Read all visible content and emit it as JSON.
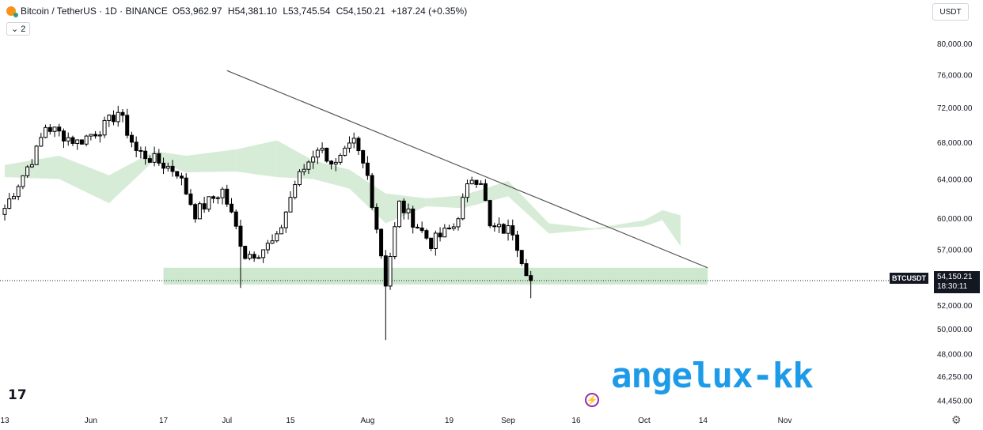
{
  "header": {
    "title": "Bitcoin / TetherUS · 1D · BINANCE",
    "open": "O53,962.97",
    "high": "H54,381.10",
    "low": "L53,745.54",
    "close": "C54,150.21",
    "change": "+187.24 (+0.35%)",
    "indicator_toggle": "⌄ 2"
  },
  "quote_currency": "USDT",
  "price_tag": {
    "symbol": "BTCUSDT",
    "price": "54,150.21",
    "countdown": "18:30:11"
  },
  "watermark": "angelux-kk",
  "colors": {
    "up": "#ffffff",
    "down": "#000000",
    "cloud_bull": "#c8e6c9",
    "cloud_bear": "#fbd7d7",
    "support_zone": "#a5d6a7",
    "watermark": "#1e9be8"
  },
  "chart_data": {
    "type": "candlestick",
    "symbol": "BTCUSDT",
    "interval": "1D",
    "x_tick_labels": [
      "13",
      "Jun",
      "17",
      "Jul",
      "15",
      "Aug",
      "19",
      "Sep",
      "16",
      "Oct",
      "14",
      "Nov"
    ],
    "y_tick_labels": [
      "80,000.00",
      "76,000.00",
      "72,000.00",
      "68,000.00",
      "64,000.00",
      "60,000.00",
      "57,000.00",
      "52,000.00",
      "50,000.00",
      "48,000.00",
      "46,250.00",
      "44,450.00"
    ],
    "y_scale": "log",
    "ylim": [
      43800,
      82000
    ],
    "current_price": 54150.21,
    "waypoints": [
      [
        "2024-05-13",
        61000
      ],
      [
        "2024-05-20",
        67000
      ],
      [
        "2024-05-22",
        69800
      ],
      [
        "2024-05-29",
        68000
      ],
      [
        "2024-06-04",
        69800
      ],
      [
        "2024-06-07",
        71500
      ],
      [
        "2024-06-11",
        67000
      ],
      [
        "2024-06-20",
        64800
      ],
      [
        "2024-06-24",
        60500
      ],
      [
        "2024-06-30",
        62800
      ],
      [
        "2024-07-05",
        56500
      ],
      [
        "2024-07-08",
        56800
      ],
      [
        "2024-07-12",
        57900
      ],
      [
        "2024-07-16",
        63500
      ],
      [
        "2024-07-21",
        67500
      ],
      [
        "2024-07-25",
        65400
      ],
      [
        "2024-07-29",
        67900
      ],
      [
        "2024-08-01",
        64300
      ],
      [
        "2024-08-05",
        54000
      ],
      [
        "2024-08-08",
        61400
      ],
      [
        "2024-08-15",
        57600
      ],
      [
        "2024-08-20",
        59200
      ],
      [
        "2024-08-24",
        64200
      ],
      [
        "2024-08-26",
        64000
      ],
      [
        "2024-08-28",
        59000
      ],
      [
        "2024-09-02",
        58800
      ],
      [
        "2024-09-04",
        56200
      ],
      [
        "2024-09-06",
        54150
      ]
    ],
    "cloud": [
      [
        "2024-05-13",
        65500,
        64200
      ],
      [
        "2024-05-25",
        66500,
        64000
      ],
      [
        "2024-06-05",
        64400,
        61500
      ],
      [
        "2024-06-15",
        67000,
        66000
      ],
      [
        "2024-06-22",
        66500,
        64700
      ],
      [
        "2024-07-03",
        67200,
        64800
      ],
      [
        "2024-07-12",
        68200,
        64200
      ],
      [
        "2024-07-20",
        66000,
        64000
      ],
      [
        "2024-07-28",
        65000,
        63000
      ],
      [
        "2024-08-05",
        62500,
        59500
      ],
      [
        "2024-08-14",
        62000,
        61200
      ],
      [
        "2024-08-22",
        62300,
        61000
      ],
      [
        "2024-09-01",
        63800,
        62200
      ],
      [
        "2024-09-10",
        59500,
        58500
      ],
      [
        "2024-09-20",
        59000,
        58900
      ],
      [
        "2024-10-01",
        59800,
        59200
      ],
      [
        "2024-10-05",
        60800,
        59800
      ],
      [
        "2024-10-09",
        60300,
        57300
      ]
    ],
    "annotations": {
      "trendline": [
        [
          "2024-07-01",
          76500
        ],
        [
          "2024-10-15",
          55300
        ]
      ],
      "support_zone": {
        "from": "2024-06-17",
        "to": "2024-10-15",
        "low": 53800,
        "high": 55300
      }
    }
  }
}
